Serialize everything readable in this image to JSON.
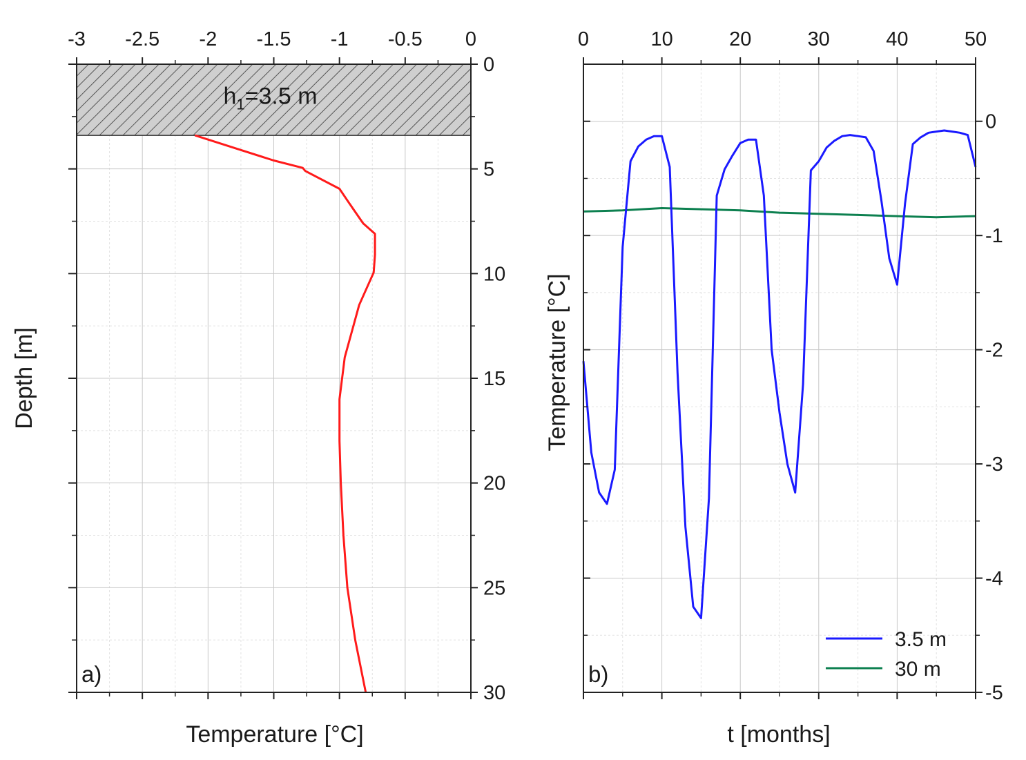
{
  "chart_data": [
    {
      "panel": "a",
      "type": "line",
      "panel_label": "a)",
      "xlabel": "Temperature [°C]",
      "ylabel": "Depth [m]",
      "xaxis_position": "top",
      "yaxis_position": "right",
      "xlim": [
        -3,
        0
      ],
      "ylim": [
        0,
        30
      ],
      "y_inverted": true,
      "x_ticks": [
        -3,
        -2.5,
        -2,
        -1.5,
        -1,
        -0.5,
        0
      ],
      "x_tick_labels": [
        "-3",
        "-2.5",
        "-2",
        "-1.5",
        "-1",
        "-0.5",
        "0"
      ],
      "y_ticks": [
        0,
        5,
        10,
        15,
        20,
        25,
        30
      ],
      "y_tick_labels": [
        "0",
        "5",
        "10",
        "15",
        "20",
        "25",
        "30"
      ],
      "grid": true,
      "layer": {
        "label": "h",
        "label_subscript": "1",
        "label_suffix": "=3.5 m",
        "depth_top": 0,
        "depth_bottom": 3.4
      },
      "series": [
        {
          "name": "temperature profile",
          "color": "#ff1a1a",
          "points": [
            [
              -2.1,
              3.4
            ],
            [
              -1.8,
              4.0
            ],
            [
              -1.5,
              4.6
            ],
            [
              -1.28,
              4.95
            ],
            [
              -1.26,
              5.1
            ],
            [
              -1.0,
              5.95
            ],
            [
              -0.93,
              6.6
            ],
            [
              -0.82,
              7.6
            ],
            [
              -0.73,
              8.1
            ],
            [
              -0.73,
              9.1
            ],
            [
              -0.74,
              9.95
            ],
            [
              -0.85,
              11.5
            ],
            [
              -0.96,
              14.0
            ],
            [
              -1.0,
              16.0
            ],
            [
              -1.0,
              18.0
            ],
            [
              -0.99,
              20.0
            ],
            [
              -0.97,
              22.5
            ],
            [
              -0.94,
              25.0
            ],
            [
              -0.88,
              27.5
            ],
            [
              -0.8,
              30.0
            ]
          ]
        }
      ]
    },
    {
      "panel": "b",
      "type": "line",
      "panel_label": "b)",
      "xlabel": "t [months]",
      "ylabel": "Temperature [°C]",
      "xaxis_position": "top",
      "yaxis_position": "right",
      "xlim": [
        0,
        50
      ],
      "ylim": [
        -5,
        0.5
      ],
      "x_ticks": [
        0,
        10,
        20,
        30,
        40,
        50
      ],
      "x_tick_labels": [
        "0",
        "10",
        "20",
        "30",
        "40",
        "50"
      ],
      "y_ticks": [
        0,
        -1,
        -2,
        -3,
        -4,
        -5
      ],
      "y_tick_labels": [
        "0",
        "-1",
        "-2",
        "-3",
        "-4",
        "-5"
      ],
      "grid": true,
      "legend": {
        "placement": "bottom-right"
      },
      "series": [
        {
          "name": "3.5 m",
          "color": "#1a1aff",
          "points": [
            [
              0,
              -2.1
            ],
            [
              1,
              -2.9
            ],
            [
              2,
              -3.25
            ],
            [
              3,
              -3.35
            ],
            [
              4,
              -3.05
            ],
            [
              5,
              -1.1
            ],
            [
              6,
              -0.35
            ],
            [
              7,
              -0.22
            ],
            [
              8,
              -0.16
            ],
            [
              9,
              -0.13
            ],
            [
              10,
              -0.13
            ],
            [
              11,
              -0.4
            ],
            [
              12,
              -2.2
            ],
            [
              13,
              -3.55
            ],
            [
              14,
              -4.25
            ],
            [
              15,
              -4.35
            ],
            [
              16,
              -3.3
            ],
            [
              17,
              -0.65
            ],
            [
              18,
              -0.42
            ],
            [
              19,
              -0.3
            ],
            [
              20,
              -0.19
            ],
            [
              21,
              -0.16
            ],
            [
              22,
              -0.16
            ],
            [
              23,
              -0.65
            ],
            [
              24,
              -2.0
            ],
            [
              25,
              -2.55
            ],
            [
              26,
              -3.0
            ],
            [
              27,
              -3.25
            ],
            [
              28,
              -2.3
            ],
            [
              29,
              -0.43
            ],
            [
              30,
              -0.35
            ],
            [
              31,
              -0.23
            ],
            [
              32,
              -0.17
            ],
            [
              33,
              -0.13
            ],
            [
              34,
              -0.12
            ],
            [
              35,
              -0.13
            ],
            [
              36,
              -0.14
            ],
            [
              37,
              -0.26
            ],
            [
              38,
              -0.7
            ],
            [
              39,
              -1.2
            ],
            [
              40,
              -1.43
            ],
            [
              41,
              -0.72
            ],
            [
              42,
              -0.2
            ],
            [
              43,
              -0.14
            ],
            [
              44,
              -0.1
            ],
            [
              45,
              -0.09
            ],
            [
              46,
              -0.08
            ],
            [
              47,
              -0.09
            ],
            [
              48,
              -0.1
            ],
            [
              49,
              -0.12
            ],
            [
              50,
              -0.4
            ]
          ]
        },
        {
          "name": "30 m",
          "color": "#0d8050",
          "points": [
            [
              0,
              -0.79
            ],
            [
              5,
              -0.78
            ],
            [
              10,
              -0.76
            ],
            [
              15,
              -0.77
            ],
            [
              20,
              -0.78
            ],
            [
              25,
              -0.8
            ],
            [
              30,
              -0.81
            ],
            [
              35,
              -0.82
            ],
            [
              40,
              -0.83
            ],
            [
              45,
              -0.84
            ],
            [
              50,
              -0.83
            ]
          ]
        }
      ]
    }
  ]
}
